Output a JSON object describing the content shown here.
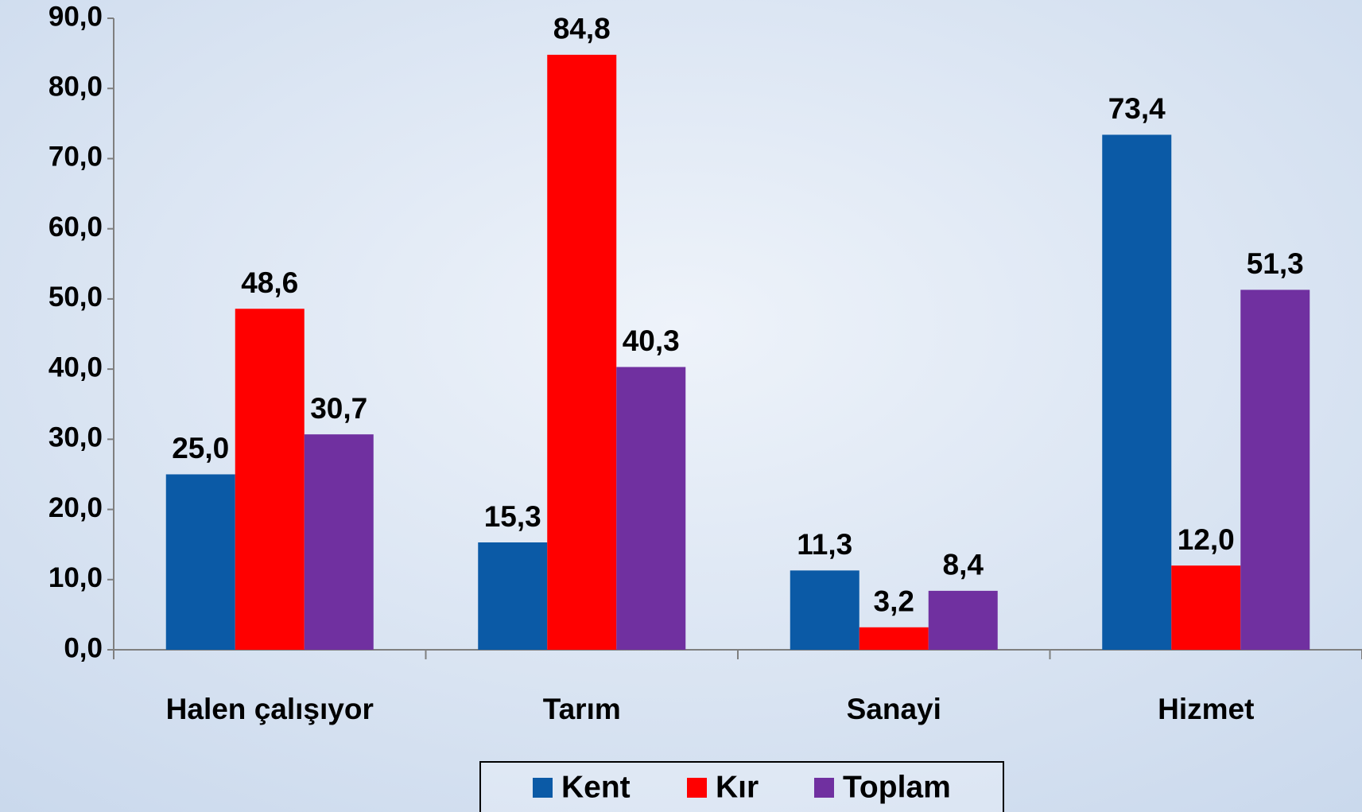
{
  "chart_data": {
    "type": "bar",
    "categories": [
      "Halen çalışıyor",
      "Tarım",
      "Sanayi",
      "Hizmet"
    ],
    "series": [
      {
        "name": "Kent",
        "color": "#0b5aa6",
        "values": [
          25.0,
          15.3,
          11.3,
          73.4
        ],
        "value_labels": [
          "25,0",
          "15,3",
          "11,3",
          "73,4"
        ]
      },
      {
        "name": "Kır",
        "color": "#ff0000",
        "values": [
          48.6,
          84.8,
          3.2,
          12.0
        ],
        "value_labels": [
          "48,6",
          "84,8",
          "3,2",
          "12,0"
        ]
      },
      {
        "name": "Toplam",
        "color": "#7030a0",
        "values": [
          30.7,
          40.3,
          8.4,
          51.3
        ],
        "value_labels": [
          "30,7",
          "40,3",
          "8,4",
          "51,3"
        ]
      }
    ],
    "ylim": [
      0,
      90
    ],
    "yticks": [
      {
        "value": 0,
        "label": "0,0"
      },
      {
        "value": 10,
        "label": "10,0"
      },
      {
        "value": 20,
        "label": "20,0"
      },
      {
        "value": 30,
        "label": "30,0"
      },
      {
        "value": 40,
        "label": "40,0"
      },
      {
        "value": 50,
        "label": "50,0"
      },
      {
        "value": 60,
        "label": "60,0"
      },
      {
        "value": 70,
        "label": "70,0"
      },
      {
        "value": 80,
        "label": "80,0"
      },
      {
        "value": 90,
        "label": "90,0"
      }
    ],
    "legend": "bottom"
  }
}
